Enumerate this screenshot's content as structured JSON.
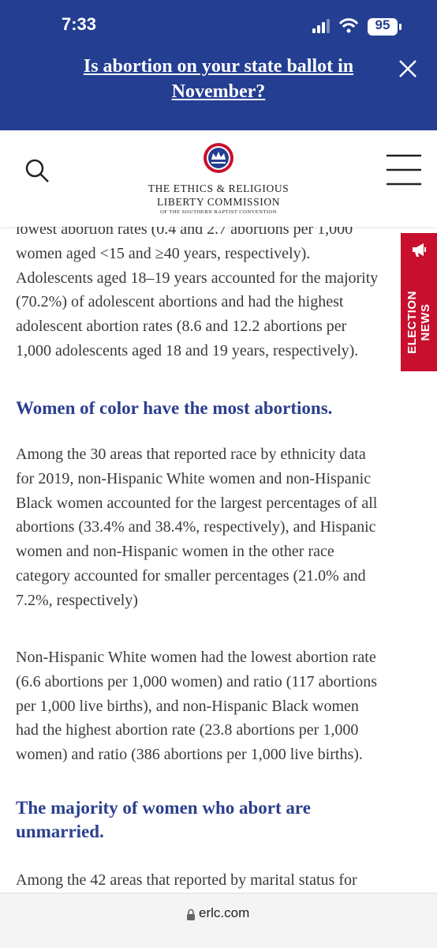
{
  "status_bar": {
    "time": "7:33",
    "battery": "95"
  },
  "banner": {
    "title_lines": [
      "Is abortion on your state ballot in",
      "November?"
    ]
  },
  "header": {
    "org_lines": [
      "THE ETHICS & RELIGIOUS",
      "LIBERTY COMMISSION"
    ],
    "org_subtitle": "OF THE SOUTHERN BAPTIST CONVENTION"
  },
  "side_tab": "ELECTION NEWS",
  "article": {
    "intro": [
      "lowest abortion rates (0.4 and 2.7 abortions per 1,000",
      "women aged <15 and ≥40 years, respectively).",
      "Adolescents aged 18–19 years accounted for the majority",
      "(70.2%) of adolescent abortions and had the highest",
      "adolescent abortion rates (8.6 and 12.2 abortions per",
      "1,000 adolescents aged 18 and 19 years, respectively)."
    ],
    "sections": [
      {
        "heading": [
          "Women of color have the most abortions."
        ],
        "paragraphs": [
          [
            "Among the 30 areas that reported race by ethnicity data",
            "for 2019, non-Hispanic White women and non-Hispanic",
            "Black women accounted for the largest percentages of all",
            "abortions (33.4% and 38.4%, respectively), and Hispanic",
            "women and non-Hispanic women in the other race",
            "category accounted for smaller percentages (21.0% and",
            "7.2%, respectively)"
          ],
          [
            "Non-Hispanic White women had the lowest abortion rate",
            "(6.6 abortions per 1,000 women) and ratio (117 abortions",
            "per 1,000 live births), and non-Hispanic Black women",
            "had the highest abortion rate (23.8 abortions per 1,000",
            "women) and ratio (386 abortions per 1,000 live births)."
          ]
        ]
      },
      {
        "heading": [
          "The majority of women who abort are",
          "unmarried."
        ],
        "paragraphs": [
          [
            "Among the 42 areas that reported by marital status for"
          ]
        ]
      }
    ]
  },
  "address_bar": "erlc.com"
}
